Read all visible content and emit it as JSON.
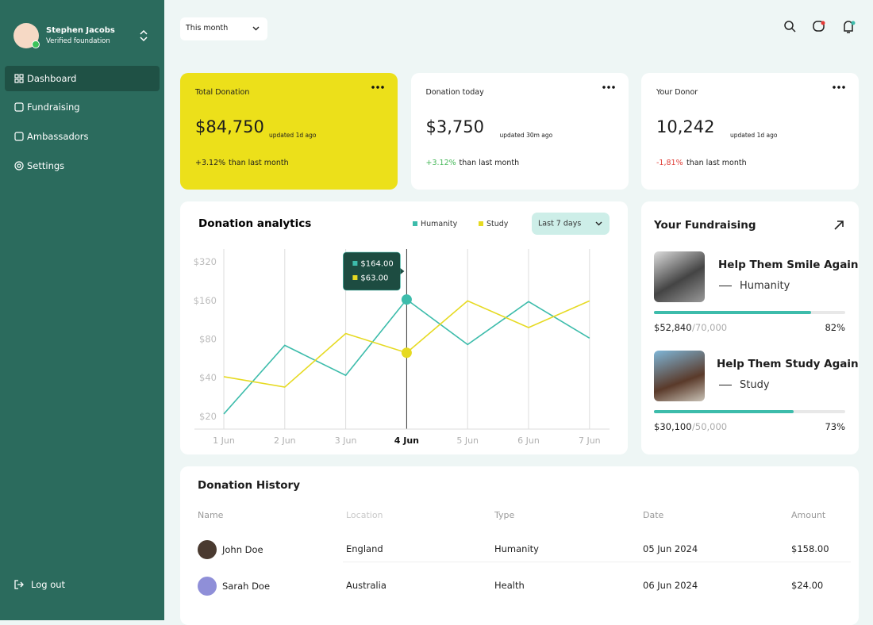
{
  "sidebar": {
    "user": {
      "name": "Stephen Jacobs",
      "role": "Verified foundation"
    },
    "nav": [
      "Dashboard",
      "Fundraising",
      "Ambassadors",
      "Settings"
    ],
    "logout": "Log out"
  },
  "topbar": {
    "period": "This month"
  },
  "stats": [
    {
      "title": "Total Donation",
      "value": "$84,750",
      "updated": "updated 1d ago",
      "change": "+3.12%",
      "note": "than last month"
    },
    {
      "title": "Donation today",
      "value": "$3,750",
      "updated": "updated 30m ago",
      "change": "+3.12%",
      "note": "than last month"
    },
    {
      "title": "Your Donor",
      "value": "10,242",
      "updated": "updated 1d ago",
      "change": "-1,81%",
      "note": "than last month"
    }
  ],
  "chart_data": {
    "type": "line",
    "title": "Donation analytics",
    "range": "Last 7 days",
    "categories": [
      "1 Jun",
      "2 Jun",
      "3 Jun",
      "4 Jun",
      "5 Jun",
      "6 Jun",
      "7 Jun"
    ],
    "series": [
      {
        "name": "Humanity",
        "color": "#3dbcab",
        "values": [
          21,
          72,
          42,
          164,
          73,
          158,
          82
        ],
        "tooltip": "$164.00"
      },
      {
        "name": "Study",
        "color": "#e6da22",
        "values": [
          41,
          34,
          89,
          63,
          160,
          99,
          160
        ],
        "tooltip": "$63.00"
      }
    ],
    "log": true,
    "ylim": [
      16,
      400
    ],
    "yticks": [
      {
        "value": 20,
        "label": "$20"
      },
      {
        "value": 40,
        "label": "$40"
      },
      {
        "value": 80,
        "label": "$80"
      },
      {
        "value": 160,
        "label": "$160"
      },
      {
        "value": 320,
        "label": "$320"
      }
    ]
  },
  "fundraising": {
    "title": "Your Fundraising",
    "items": [
      {
        "title": "Help Them Smile Again",
        "category": "Humanity",
        "raised": "$52,840",
        "goal": "/70,000",
        "progress": {
          "value": 82,
          "label": "82%"
        }
      },
      {
        "title": "Help Them Study Again",
        "category": "Study",
        "raised": "$30,100",
        "goal": "/50,000",
        "progress": {
          "value": 73,
          "label": "73%"
        }
      }
    ]
  },
  "history": {
    "title": "Donation History",
    "columns": [
      "Name",
      "Location",
      "Type",
      "Date",
      "Amount"
    ],
    "rows": [
      [
        "John Doe",
        "England",
        "Humanity",
        "05 Jun 2024",
        "$158.00"
      ],
      [
        "Sarah Doe",
        "Australia",
        "Health",
        "06 Jun 2024",
        "$24.00"
      ]
    ]
  }
}
